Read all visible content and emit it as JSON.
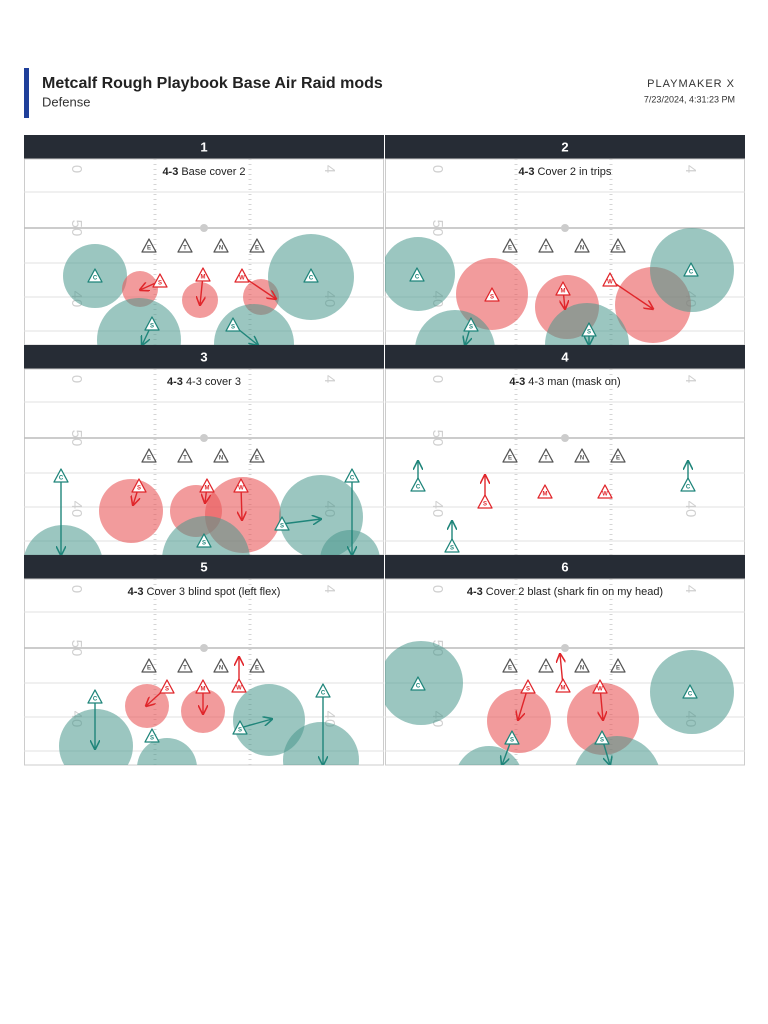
{
  "header": {
    "title": "Metcalf Rough Playbook Base Air Raid mods",
    "subtitle": "Defense",
    "brand": "PLAYMAKER X",
    "timestamp": "7/23/2024, 4:31:23 PM"
  },
  "field": {
    "numbers": [
      "0",
      "50",
      "40",
      "4"
    ]
  },
  "panels": [
    {
      "number": "1",
      "formation": "4-3",
      "name": "Base cover 2",
      "players": [
        {
          "label": "E"
        },
        {
          "label": "T"
        },
        {
          "label": "N"
        },
        {
          "label": "E"
        },
        {
          "label": "C"
        },
        {
          "label": "S"
        },
        {
          "label": "M"
        },
        {
          "label": "W"
        },
        {
          "label": "C"
        },
        {
          "label": "S"
        },
        {
          "label": "S"
        }
      ]
    },
    {
      "number": "2",
      "formation": "4-3",
      "name": "Cover 2 in trips",
      "players": [
        {
          "label": "E"
        },
        {
          "label": "T"
        },
        {
          "label": "N"
        },
        {
          "label": "E"
        },
        {
          "label": "C"
        },
        {
          "label": "S"
        },
        {
          "label": "M"
        },
        {
          "label": "W"
        },
        {
          "label": "C"
        },
        {
          "label": "S"
        },
        {
          "label": "S"
        }
      ]
    },
    {
      "number": "3",
      "formation": "4-3",
      "name": "4-3 cover 3",
      "players": [
        {
          "label": "E"
        },
        {
          "label": "T"
        },
        {
          "label": "N"
        },
        {
          "label": "E"
        },
        {
          "label": "C"
        },
        {
          "label": "S"
        },
        {
          "label": "M"
        },
        {
          "label": "W"
        },
        {
          "label": "C"
        },
        {
          "label": "S"
        },
        {
          "label": "S"
        }
      ]
    },
    {
      "number": "4",
      "formation": "4-3",
      "name": "4-3 man (mask on)",
      "players": [
        {
          "label": "E"
        },
        {
          "label": "T"
        },
        {
          "label": "N"
        },
        {
          "label": "E"
        },
        {
          "label": "C"
        },
        {
          "label": "S"
        },
        {
          "label": "M"
        },
        {
          "label": "W"
        },
        {
          "label": "C"
        },
        {
          "label": "S"
        }
      ]
    },
    {
      "number": "5",
      "formation": "4-3",
      "name": "Cover 3 blind spot (left flex)",
      "players": [
        {
          "label": "E"
        },
        {
          "label": "T"
        },
        {
          "label": "N"
        },
        {
          "label": "E"
        },
        {
          "label": "C"
        },
        {
          "label": "S"
        },
        {
          "label": "M"
        },
        {
          "label": "W"
        },
        {
          "label": "C"
        },
        {
          "label": "S"
        },
        {
          "label": "S"
        }
      ]
    },
    {
      "number": "6",
      "formation": "4-3",
      "name": "Cover 2 blast (shark fin on my head)",
      "players": [
        {
          "label": "E"
        },
        {
          "label": "T"
        },
        {
          "label": "N"
        },
        {
          "label": "E"
        },
        {
          "label": "C"
        },
        {
          "label": "S"
        },
        {
          "label": "M"
        },
        {
          "label": "W"
        },
        {
          "label": "C"
        },
        {
          "label": "S"
        },
        {
          "label": "S"
        }
      ]
    }
  ]
}
